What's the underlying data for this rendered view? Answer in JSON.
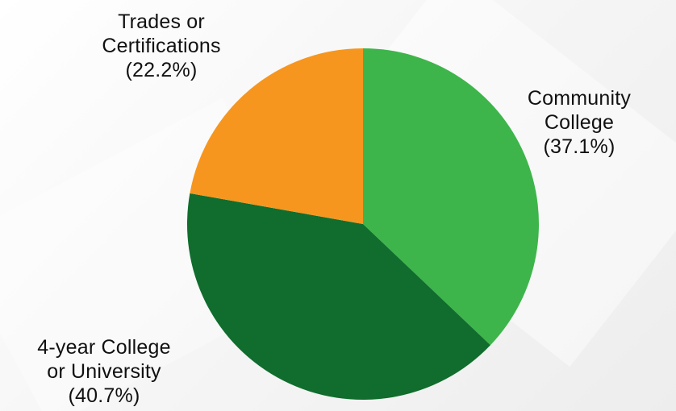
{
  "chart_data": {
    "type": "pie",
    "title": "",
    "start_angle_deg": 0,
    "direction": "clockwise",
    "slices": [
      {
        "label_lines": [
          "Community",
          "College"
        ],
        "value": 37.1,
        "value_text": "(37.1%)",
        "color": "#3db54a"
      },
      {
        "label_lines": [
          "4-year College",
          "or University"
        ],
        "value": 40.7,
        "value_text": "(40.7%)",
        "color": "#106d2d"
      },
      {
        "label_lines": [
          "Trades or",
          "Certifications"
        ],
        "value": 22.2,
        "value_text": "(22.2%)",
        "color": "#f6961f"
      }
    ]
  }
}
